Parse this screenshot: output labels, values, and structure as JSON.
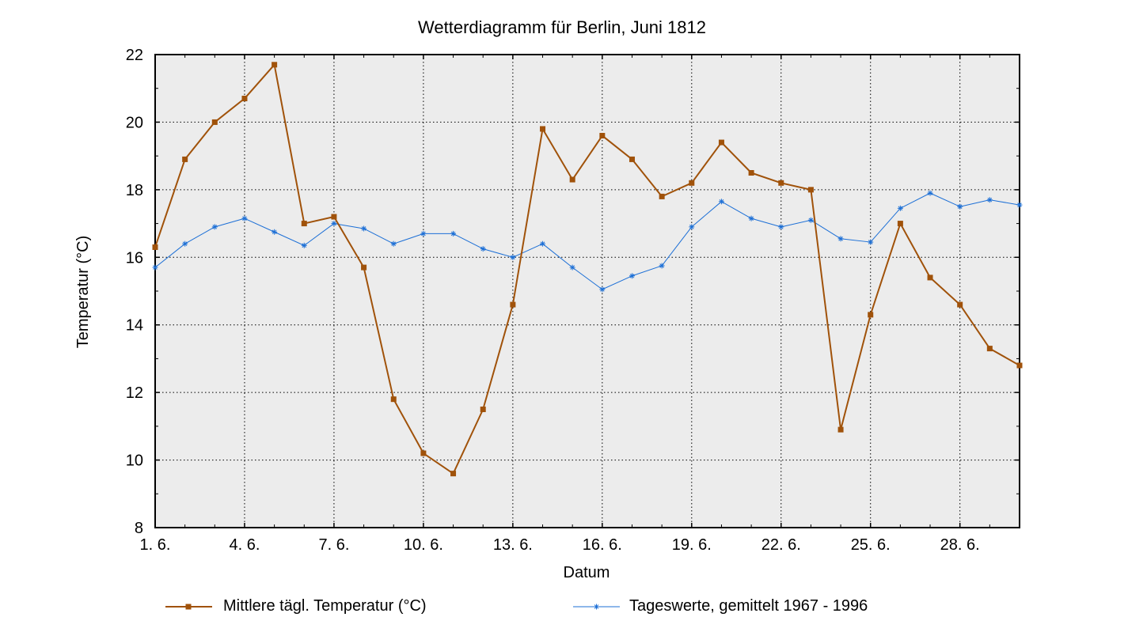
{
  "chart_data": {
    "type": "line",
    "title": "Wetterdiagramm für Berlin, Juni 1812",
    "xlabel": "Datum",
    "ylabel": "Temperatur (°C)",
    "ylim": [
      8,
      22
    ],
    "yticks": [
      8,
      10,
      12,
      14,
      16,
      18,
      20,
      22
    ],
    "xlim": [
      1,
      30
    ],
    "xticks": [
      {
        "day": 1,
        "label": "1. 6."
      },
      {
        "day": 4,
        "label": "4. 6."
      },
      {
        "day": 7,
        "label": "7. 6."
      },
      {
        "day": 10,
        "label": "10. 6."
      },
      {
        "day": 13,
        "label": "13. 6."
      },
      {
        "day": 16,
        "label": "16. 6."
      },
      {
        "day": 19,
        "label": "19. 6."
      },
      {
        "day": 22,
        "label": "22. 6."
      },
      {
        "day": 25,
        "label": "25. 6."
      },
      {
        "day": 28,
        "label": "28. 6."
      }
    ],
    "grid": true,
    "legend_position": "bottom",
    "x": [
      1,
      2,
      3,
      4,
      5,
      6,
      7,
      8,
      9,
      10,
      11,
      12,
      13,
      14,
      15,
      16,
      17,
      18,
      19,
      20,
      21,
      22,
      23,
      24,
      25,
      26,
      27,
      28,
      29,
      30
    ],
    "series": [
      {
        "name": "Mittlere tägl. Temperatur (°C)",
        "color": "#a0520a",
        "marker": "square",
        "values": [
          16.3,
          18.9,
          20.0,
          20.7,
          21.7,
          17.0,
          17.2,
          15.7,
          11.8,
          10.2,
          9.6,
          11.5,
          14.6,
          19.8,
          18.3,
          19.6,
          18.9,
          17.8,
          18.2,
          19.4,
          18.5,
          18.2,
          18.0,
          10.9,
          14.3,
          17.0,
          15.4,
          14.6,
          13.3,
          12.8
        ]
      },
      {
        "name": "Tageswerte, gemittelt 1967 - 1996",
        "color": "#1c6fd6",
        "marker": "star",
        "values": [
          15.7,
          16.4,
          16.9,
          17.15,
          16.75,
          16.35,
          17.0,
          16.85,
          16.4,
          16.7,
          16.7,
          16.25,
          16.0,
          16.4,
          15.7,
          15.05,
          15.45,
          15.75,
          16.9,
          17.65,
          17.15,
          16.9,
          17.1,
          16.55,
          16.45,
          17.45,
          17.9,
          17.5,
          17.7,
          17.55
        ]
      }
    ]
  }
}
